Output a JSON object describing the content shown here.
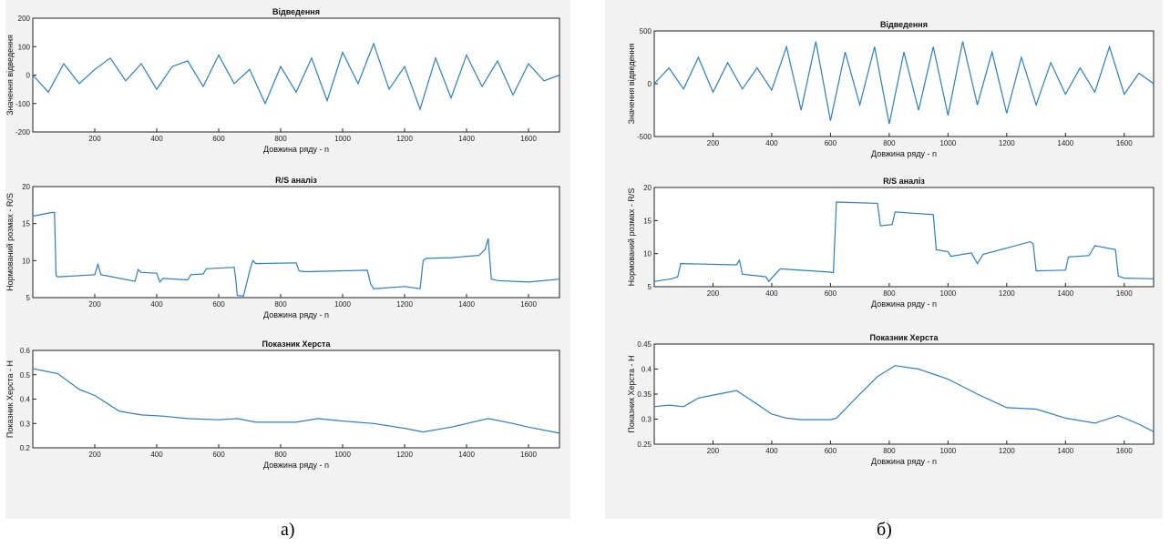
{
  "panels": [
    {
      "caption": "а)",
      "charts": [
        {
          "type": "line",
          "title": "Відведення",
          "xlabel": "Довжина ряду - n",
          "ylabel": "Значення відведення",
          "xlim": [
            0,
            1700
          ],
          "ylim": [
            -200,
            200
          ],
          "xticks": [
            200,
            400,
            600,
            800,
            1000,
            1200,
            1400,
            1600
          ],
          "yticks": [
            -200,
            -100,
            0,
            100,
            200
          ],
          "x": [
            0,
            50,
            100,
            150,
            200,
            250,
            300,
            350,
            400,
            450,
            500,
            550,
            600,
            650,
            700,
            750,
            800,
            850,
            900,
            950,
            1000,
            1050,
            1100,
            1150,
            1200,
            1250,
            1300,
            1350,
            1400,
            1450,
            1500,
            1550,
            1600,
            1650,
            1700
          ],
          "y": [
            0,
            -60,
            40,
            -30,
            20,
            60,
            -20,
            40,
            -50,
            30,
            50,
            -40,
            70,
            -30,
            20,
            -100,
            30,
            -60,
            60,
            -90,
            80,
            -30,
            110,
            -50,
            30,
            -120,
            60,
            -80,
            70,
            -40,
            50,
            -70,
            40,
            -20,
            0
          ]
        },
        {
          "type": "line",
          "title": "R/S аналіз",
          "xlabel": "Довжина ряду - n",
          "ylabel": "Нормований розмах - R/S",
          "xlim": [
            0,
            1700
          ],
          "ylim": [
            5,
            20
          ],
          "xticks": [
            200,
            400,
            600,
            800,
            1000,
            1200,
            1400,
            1600
          ],
          "yticks": [
            5,
            10,
            15,
            20
          ],
          "x": [
            0,
            60,
            70,
            75,
            80,
            200,
            210,
            220,
            330,
            340,
            350,
            400,
            410,
            420,
            500,
            510,
            550,
            560,
            650,
            655,
            660,
            680,
            700,
            710,
            720,
            850,
            860,
            880,
            1080,
            1090,
            1100,
            1200,
            1250,
            1260,
            1270,
            1350,
            1440,
            1460,
            1470,
            1480,
            1500,
            1600,
            1700
          ],
          "y": [
            16,
            16.5,
            16.5,
            8,
            7.8,
            8.1,
            9.5,
            8.1,
            7.2,
            8.8,
            8.4,
            8.3,
            7.1,
            7.6,
            7.4,
            8.1,
            8.2,
            8.9,
            9.1,
            7.5,
            5.3,
            5.2,
            8.6,
            10,
            9.6,
            9.7,
            8.6,
            8.5,
            8.7,
            6.9,
            6.2,
            6.5,
            6.2,
            10,
            10.3,
            10.4,
            10.7,
            11.5,
            13,
            7.5,
            7.3,
            7.1,
            7.5
          ]
        },
        {
          "type": "line",
          "title": "Показник Херста",
          "xlabel": "Довжина ряду - n",
          "ylabel": "Показник Херста - H",
          "xlim": [
            0,
            1700
          ],
          "ylim": [
            0.2,
            0.6
          ],
          "xticks": [
            200,
            400,
            600,
            800,
            1000,
            1200,
            1400,
            1600
          ],
          "yticks": [
            0.2,
            0.3,
            0.4,
            0.5,
            0.6
          ],
          "x": [
            0,
            80,
            150,
            200,
            280,
            350,
            420,
            500,
            600,
            660,
            720,
            850,
            920,
            1000,
            1100,
            1200,
            1260,
            1350,
            1470,
            1550,
            1600,
            1700
          ],
          "y": [
            0.525,
            0.505,
            0.44,
            0.415,
            0.35,
            0.335,
            0.33,
            0.32,
            0.315,
            0.32,
            0.305,
            0.305,
            0.32,
            0.31,
            0.3,
            0.28,
            0.265,
            0.285,
            0.32,
            0.3,
            0.285,
            0.26
          ]
        }
      ]
    },
    {
      "caption": "б)",
      "charts": [
        {
          "type": "line",
          "title": "Відведення",
          "xlabel": "Довжина ряду - n",
          "ylabel": "Значення відведення",
          "xlim": [
            0,
            1700
          ],
          "ylim": [
            -500,
            500
          ],
          "xticks": [
            200,
            400,
            600,
            800,
            1000,
            1200,
            1400,
            1600
          ],
          "yticks": [
            -500,
            0,
            500
          ],
          "x": [
            0,
            50,
            100,
            150,
            200,
            250,
            300,
            350,
            400,
            450,
            500,
            550,
            600,
            650,
            700,
            750,
            800,
            850,
            900,
            950,
            1000,
            1050,
            1100,
            1150,
            1200,
            1250,
            1300,
            1350,
            1400,
            1450,
            1500,
            1550,
            1600,
            1650,
            1700
          ],
          "y": [
            0,
            150,
            -50,
            250,
            -80,
            200,
            -50,
            150,
            -60,
            350,
            -250,
            400,
            -350,
            300,
            -200,
            350,
            -380,
            300,
            -250,
            350,
            -300,
            400,
            -200,
            300,
            -280,
            250,
            -200,
            200,
            -100,
            150,
            -80,
            350,
            -100,
            100,
            0
          ]
        },
        {
          "type": "line",
          "title": "R/S аналіз",
          "xlabel": "Довжина ряду - n",
          "ylabel": "Нормований розмах - R/S",
          "xlim": [
            0,
            1700
          ],
          "ylim": [
            5,
            20
          ],
          "xticks": [
            200,
            400,
            600,
            800,
            1000,
            1200,
            1400,
            1600
          ],
          "yticks": [
            5,
            10,
            15,
            20
          ],
          "x": [
            0,
            60,
            80,
            90,
            280,
            290,
            300,
            380,
            390,
            420,
            430,
            600,
            610,
            620,
            760,
            770,
            810,
            820,
            950,
            960,
            1000,
            1010,
            1080,
            1100,
            1120,
            1280,
            1290,
            1300,
            1400,
            1410,
            1480,
            1500,
            1570,
            1580,
            1600,
            1700
          ],
          "y": [
            5.8,
            6.2,
            6.5,
            8.5,
            8.3,
            9,
            6.9,
            6.5,
            5.8,
            7.3,
            7.7,
            7.2,
            7.1,
            17.8,
            17.6,
            14.2,
            14.4,
            16.3,
            15.9,
            10.6,
            10.3,
            9.6,
            10.1,
            8.5,
            9.9,
            11.8,
            11.5,
            7.4,
            7.5,
            9.5,
            9.7,
            11.2,
            10.6,
            6.6,
            6.3,
            6.2
          ]
        },
        {
          "type": "line",
          "title": "Показник Херста",
          "xlabel": "Довжина ряду - n",
          "ylabel": "Показник Херста - H",
          "xlim": [
            0,
            1700
          ],
          "ylim": [
            0.25,
            0.45
          ],
          "xticks": [
            200,
            400,
            600,
            800,
            1000,
            1200,
            1400,
            1600
          ],
          "yticks": [
            0.25,
            0.3,
            0.35,
            0.4,
            0.45
          ],
          "x": [
            0,
            50,
            100,
            150,
            200,
            280,
            350,
            400,
            450,
            500,
            550,
            600,
            620,
            700,
            760,
            820,
            900,
            1000,
            1100,
            1200,
            1300,
            1400,
            1500,
            1580,
            1650,
            1700
          ],
          "y": [
            0.325,
            0.328,
            0.325,
            0.342,
            0.348,
            0.357,
            0.33,
            0.31,
            0.302,
            0.299,
            0.299,
            0.299,
            0.302,
            0.35,
            0.385,
            0.407,
            0.4,
            0.38,
            0.35,
            0.323,
            0.32,
            0.302,
            0.292,
            0.307,
            0.29,
            0.275
          ]
        }
      ]
    }
  ]
}
